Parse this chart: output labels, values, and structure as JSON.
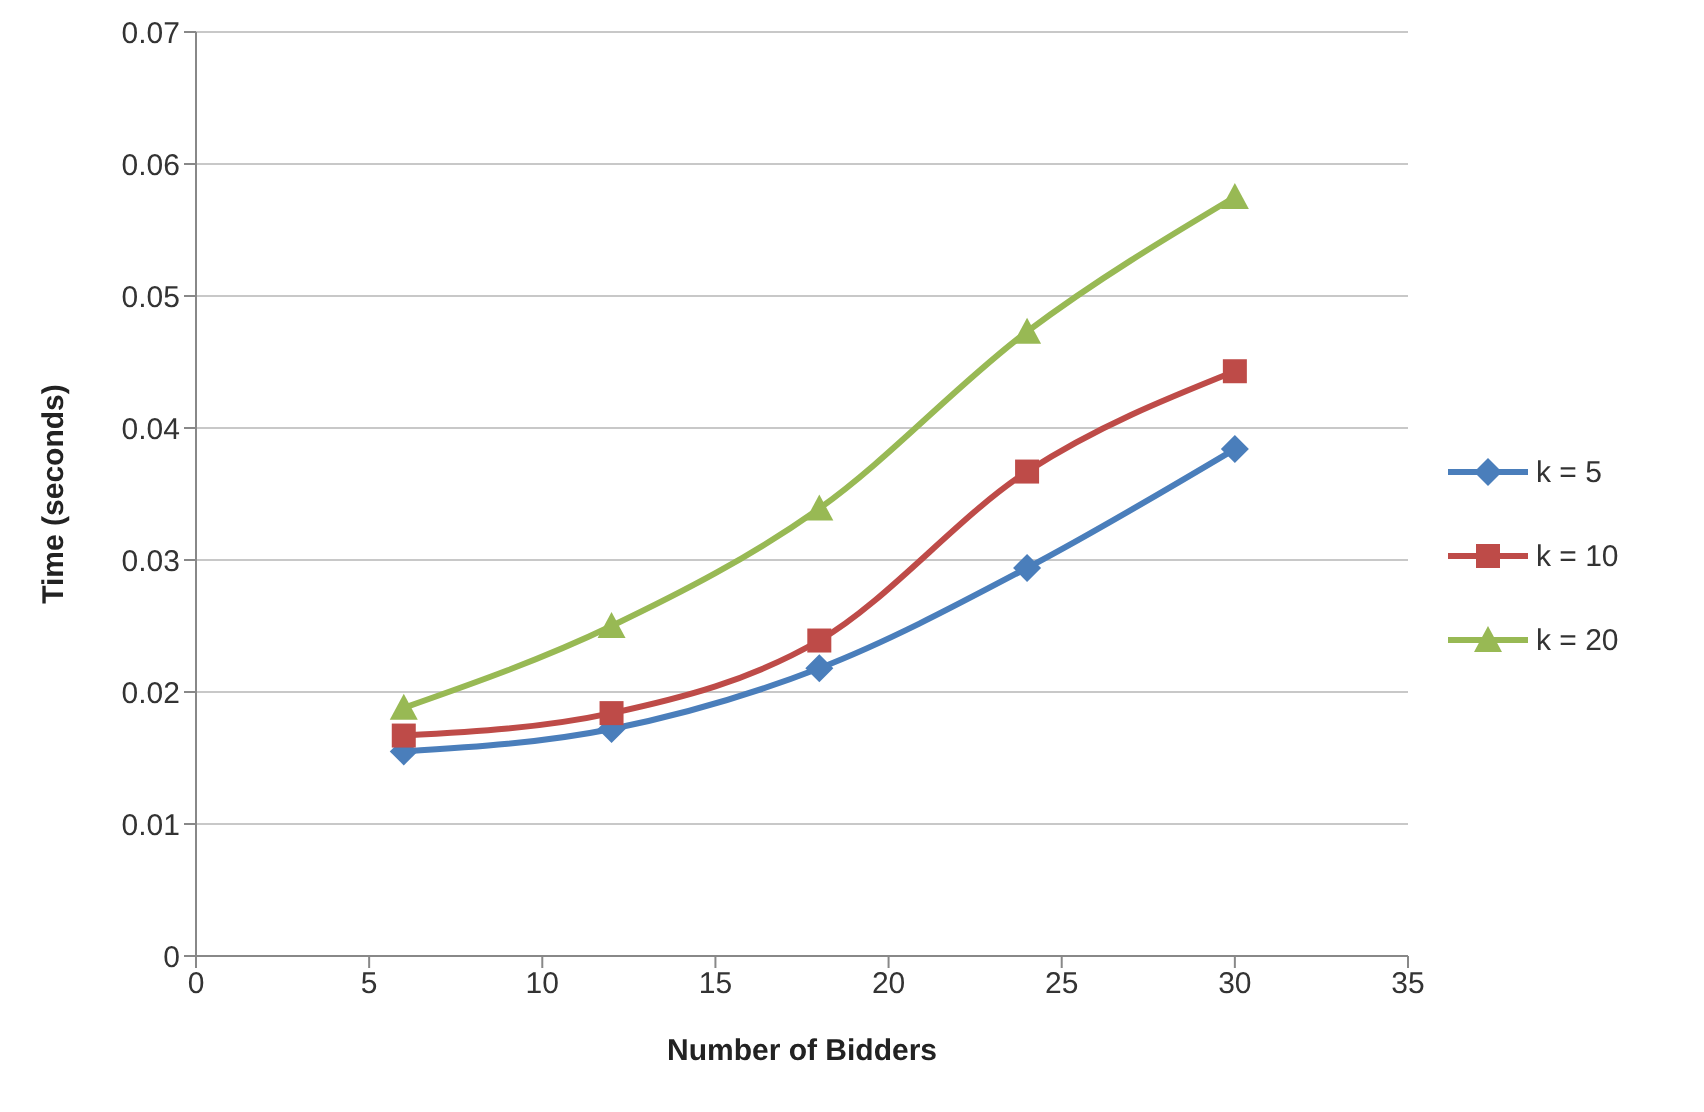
{
  "chart_data": {
    "type": "line",
    "xlabel": "Number of Bidders",
    "ylabel": "Time (seconds)",
    "x": [
      6,
      12,
      18,
      24,
      30
    ],
    "series": [
      {
        "name": "k = 5",
        "color": "#4a7ebb",
        "marker": "diamond",
        "values": [
          0.0155,
          0.0172,
          0.0218,
          0.0294,
          0.0384
        ]
      },
      {
        "name": "k = 10",
        "color": "#be4b48",
        "marker": "square",
        "values": [
          0.0167,
          0.0184,
          0.0239,
          0.0367,
          0.0443
        ]
      },
      {
        "name": "k = 20",
        "color": "#98b954",
        "marker": "triangle",
        "values": [
          0.0188,
          0.025,
          0.0339,
          0.0473,
          0.0575
        ]
      }
    ],
    "xlim": [
      0,
      35
    ],
    "xticks": [
      0,
      5,
      10,
      15,
      20,
      25,
      30,
      35
    ],
    "ylim": [
      0,
      0.07
    ],
    "yticks": [
      0,
      0.01,
      0.02,
      0.03,
      0.04,
      0.05,
      0.06,
      0.07
    ],
    "grid": "y",
    "legend": "right"
  }
}
